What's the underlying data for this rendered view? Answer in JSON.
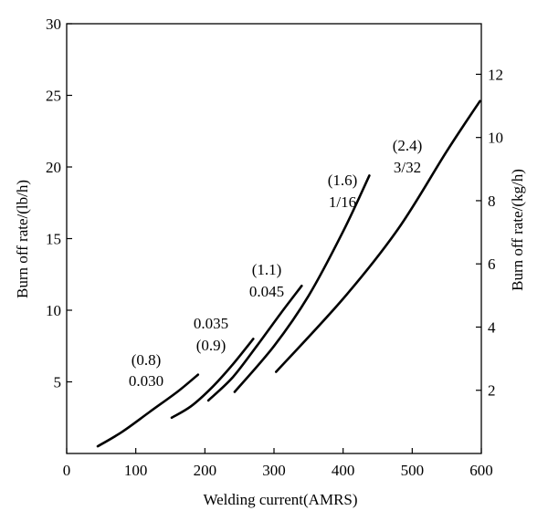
{
  "chart_data": {
    "type": "line",
    "title": "",
    "xlabel": "Welding current(AMRS)",
    "ylabel": "Burn off rate/(lb/h)",
    "y2label": "Burn off rate/(kg/h)",
    "xlim": [
      0,
      600
    ],
    "ylim": [
      0,
      30
    ],
    "y2lim": [
      0,
      13.6
    ],
    "xticks": [
      0,
      100,
      200,
      300,
      400,
      500,
      600
    ],
    "yticks": [
      5,
      10,
      15,
      20,
      25,
      30
    ],
    "y2ticks": [
      2,
      4,
      6,
      8,
      10,
      12
    ],
    "grid": false,
    "legend": "none",
    "series": [
      {
        "labels": [
          "(0.8)",
          "0.030"
        ],
        "x": [
          45,
          80,
          120,
          160,
          190
        ],
        "y": [
          0.5,
          1.5,
          2.9,
          4.3,
          5.5
        ]
      },
      {
        "labels": [
          "0.035",
          "(0.9)"
        ],
        "x": [
          152,
          180,
          210,
          240,
          270
        ],
        "y": [
          2.5,
          3.3,
          4.6,
          6.2,
          8.0
        ]
      },
      {
        "labels": [
          "(1.1)",
          "0.045"
        ],
        "x": [
          205,
          240,
          275,
          310,
          340
        ],
        "y": [
          3.7,
          5.3,
          7.5,
          9.8,
          11.7
        ]
      },
      {
        "labels": [
          "(1.6)",
          "1/16"
        ],
        "x": [
          243,
          300,
          350,
          400,
          438
        ],
        "y": [
          4.3,
          7.5,
          11.0,
          15.5,
          19.4
        ]
      },
      {
        "labels": [
          "(2.4)",
          "3/32"
        ],
        "x": [
          303,
          400,
          480,
          550,
          598
        ],
        "y": [
          5.7,
          10.8,
          15.7,
          21.1,
          24.6
        ]
      }
    ]
  }
}
